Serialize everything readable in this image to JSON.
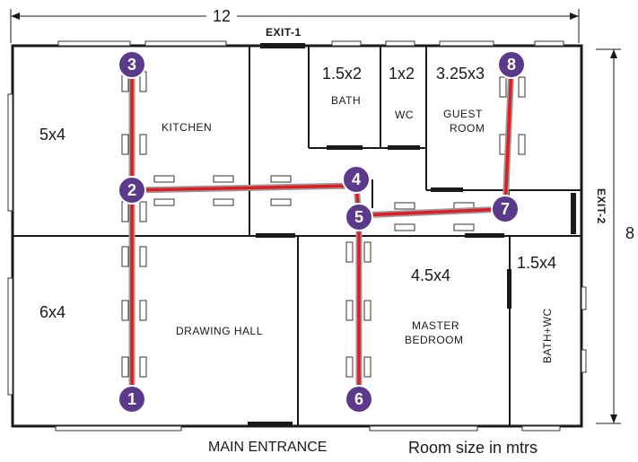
{
  "dimensions": {
    "width_label": "12",
    "height_label": "8"
  },
  "exits": {
    "exit1": "EXIT-1",
    "exit2": "EXIT-2",
    "main_entrance": "MAIN ENTRANCE"
  },
  "rooms": {
    "kitchen_size": "5x4",
    "kitchen": "KITCHEN",
    "bath_size": "1.5x2",
    "bath": "BATH",
    "wc_size": "1x2",
    "wc": "WC",
    "guest_size": "3.25x3",
    "guest_line1": "GUEST",
    "guest_line2": "ROOM",
    "drawing_size": "6x4",
    "drawing": "DRAWING HALL",
    "master_size": "4.5x4",
    "master_line1": "MASTER",
    "master_line2": "BEDROOM",
    "bathwc_size": "1.5x4",
    "bathwc": "BATH+WC"
  },
  "legend": "Room size in mtrs",
  "route_nodes": [
    "1",
    "2",
    "3",
    "4",
    "5",
    "6",
    "7",
    "8"
  ],
  "colors": {
    "route": "#e31b23",
    "node": "#5b3a8c",
    "walls": "#1a1a1a"
  }
}
